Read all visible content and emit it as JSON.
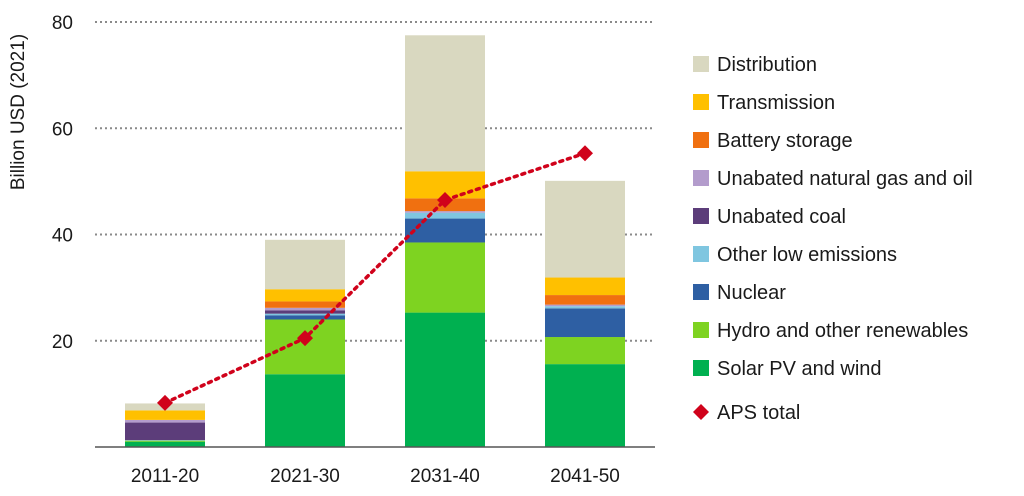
{
  "chart_data": {
    "type": "bar",
    "stacked": true,
    "ylabel": "Billion USD (2021)",
    "xlabel": "",
    "ylim": [
      0,
      80
    ],
    "yticks": [
      20,
      40,
      60,
      80
    ],
    "grid": "horizontal dotted",
    "legend_position": "right",
    "categories": [
      "2011-20",
      "2021-30",
      "2031-40",
      "2041-50"
    ],
    "series": [
      {
        "name": "Solar PV and wind",
        "color": "#00b050",
        "values": [
          1.0,
          13.7,
          25.3,
          15.6
        ]
      },
      {
        "name": "Hydro and other renewables",
        "color": "#7ed321",
        "values": [
          0.2,
          10.3,
          13.2,
          5.1
        ]
      },
      {
        "name": "Nuclear",
        "color": "#2e5fa3",
        "values": [
          0.0,
          0.8,
          4.5,
          5.4
        ]
      },
      {
        "name": "Other low emissions",
        "color": "#7fc6e0",
        "values": [
          0.1,
          0.3,
          1.1,
          0.4
        ]
      },
      {
        "name": "Unabated coal",
        "color": "#5c3d7a",
        "values": [
          3.3,
          0.6,
          0.0,
          0.0
        ]
      },
      {
        "name": "Unabated natural gas and oil",
        "color": "#b39ccc",
        "values": [
          0.5,
          0.5,
          0.3,
          0.3
        ]
      },
      {
        "name": "Battery storage",
        "color": "#f07010",
        "values": [
          0.0,
          1.2,
          2.4,
          1.8
        ]
      },
      {
        "name": "Transmission",
        "color": "#ffc000",
        "values": [
          1.8,
          2.3,
          5.1,
          3.3
        ]
      },
      {
        "name": "Distribution",
        "color": "#d9d8c0",
        "values": [
          1.3,
          9.3,
          25.6,
          18.2
        ]
      }
    ],
    "line_series": {
      "name": "APS total",
      "color": "#d0021b",
      "values": [
        8.3,
        20.5,
        46.5,
        55.3
      ]
    }
  }
}
